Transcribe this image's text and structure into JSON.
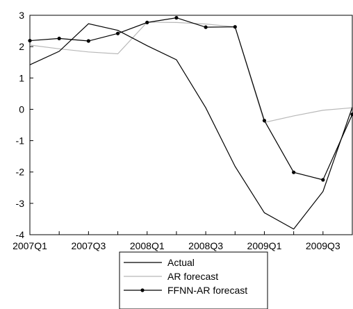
{
  "chart_data": {
    "type": "line",
    "x": [
      "2007Q1",
      "2007Q2",
      "2007Q3",
      "2007Q4",
      "2008Q1",
      "2008Q2",
      "2008Q3",
      "2008Q4",
      "2009Q1",
      "2009Q2",
      "2009Q3",
      "2009Q4"
    ],
    "xtick_labels": [
      "2007Q1",
      "2007Q3",
      "2008Q1",
      "2008Q3",
      "2009Q1",
      "2009Q3"
    ],
    "yticks": [
      "3",
      "2",
      "1",
      "0",
      "-1",
      "-2",
      "-3",
      "-4"
    ],
    "ylim": [
      -4,
      3
    ],
    "grid": false,
    "legend_position": "bottom-center",
    "series": [
      {
        "name": "Actual",
        "color": "#000000",
        "markers": false,
        "values": [
          1.42,
          1.85,
          2.73,
          2.52,
          2.03,
          1.58,
          0.05,
          -1.82,
          -3.3,
          -3.82,
          -2.62,
          0.07
        ]
      },
      {
        "name": "AR forecast",
        "color": "#b8b8b8",
        "markers": false,
        "values": [
          2.05,
          1.93,
          1.83,
          1.77,
          2.78,
          2.77,
          2.72,
          2.63,
          -0.42,
          -0.21,
          -0.03,
          0.05
        ]
      },
      {
        "name": "FFNN-AR forecast",
        "color": "#000000",
        "markers": true,
        "values": [
          2.19,
          2.26,
          2.18,
          2.42,
          2.77,
          2.92,
          2.62,
          2.63,
          -0.36,
          -2.01,
          -2.25,
          -0.16
        ]
      }
    ]
  }
}
